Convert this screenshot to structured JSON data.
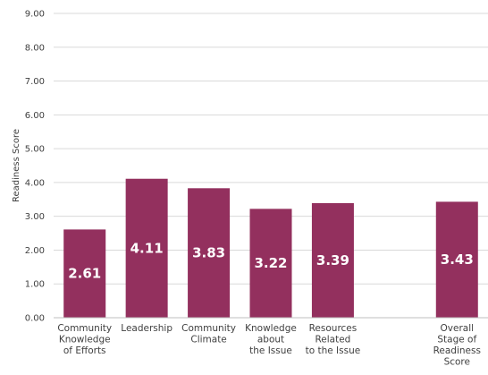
{
  "chart_data": {
    "type": "bar",
    "title": "",
    "xlabel": "",
    "ylabel": "Readiness Score",
    "ylim": [
      0,
      9
    ],
    "ytick_values": [
      0,
      1,
      2,
      3,
      4,
      5,
      6,
      7,
      8,
      9
    ],
    "ytick_labels": [
      "0.00",
      "1.00",
      "2.00",
      "3.00",
      "4.00",
      "5.00",
      "6.00",
      "7.00",
      "8.00",
      "9.00"
    ],
    "grid": true,
    "bar_color": "#93305e",
    "categories": [
      "Community Knowledge of Efforts",
      "Leadership",
      "Community Climate",
      "Knowledge about the Issue",
      "Resources Related to the Issue",
      "",
      "Overall Stage of Readiness Score"
    ],
    "category_lines": [
      [
        "Community",
        "Knowledge",
        "of Efforts"
      ],
      [
        "Leadership"
      ],
      [
        "Community",
        "Climate"
      ],
      [
        "Knowledge",
        "about",
        "the Issue"
      ],
      [
        "Resources",
        "Related",
        "to the Issue"
      ],
      [],
      [
        "Overall",
        "Stage of",
        "Readiness",
        "Score"
      ]
    ],
    "values": [
      2.61,
      4.11,
      3.83,
      3.22,
      3.39,
      null,
      3.43
    ],
    "data_labels": [
      "2.61",
      "4.11",
      "3.83",
      "3.22",
      "3.39",
      "",
      "3.43"
    ]
  }
}
